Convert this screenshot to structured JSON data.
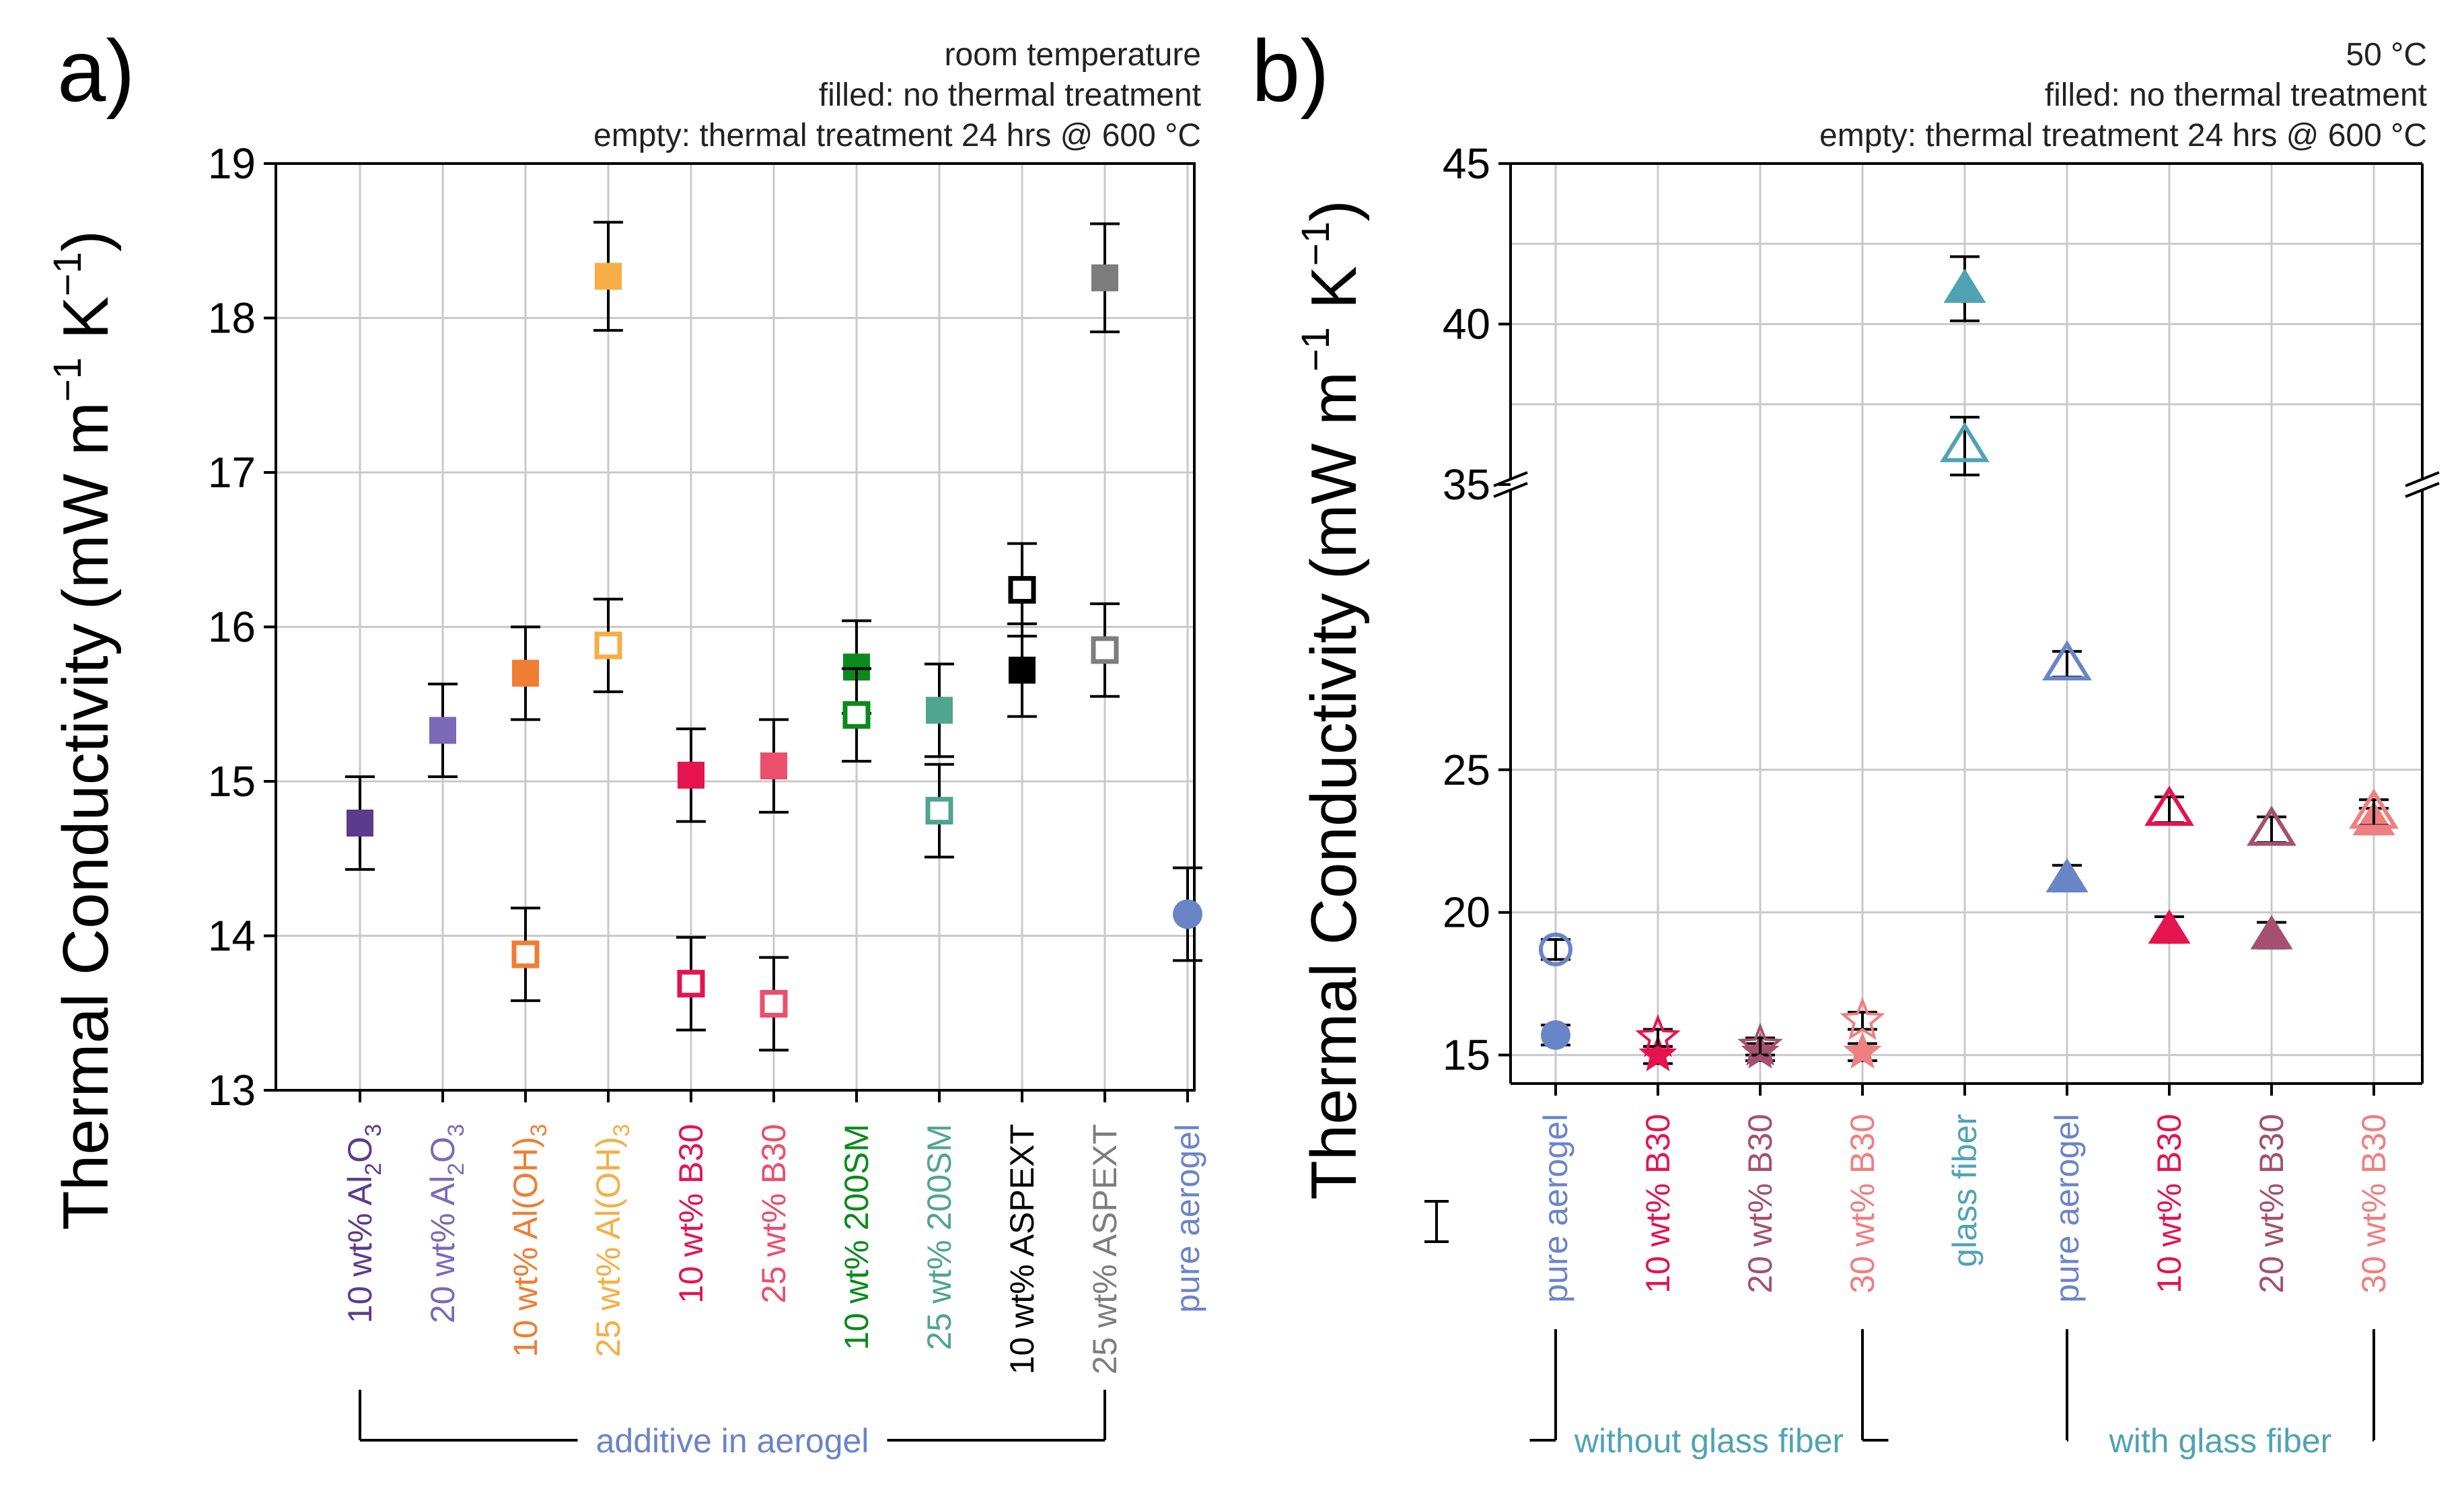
{
  "chart_data": [
    {
      "panel": "a)",
      "type": "scatter",
      "ylabel": "Thermal Conductivity",
      "yunit": {
        "pre": "(mW m",
        "sup1": "−1",
        "mid": " K",
        "sup2": "−1",
        "post": ")"
      },
      "ylim": [
        13,
        19
      ],
      "yticks": [
        "13",
        "14",
        "15",
        "16",
        "17",
        "18",
        "19"
      ],
      "annotations": [
        "room temperature",
        "filled: no thermal treatment",
        "empty: thermal treatment 24 hrs @ 600 °C"
      ],
      "categories": [
        {
          "label": "10 wt% Al",
          "sub": "2",
          "tail": "O",
          "sub2": "3",
          "color": "#5c3a8c"
        },
        {
          "label": "20 wt% Al",
          "sub": "2",
          "tail": "O",
          "sub2": "3",
          "color": "#7a6ab8"
        },
        {
          "label": "10 wt% Al(OH)",
          "sub": "3",
          "tail": "",
          "sub2": "",
          "color": "#ef7d32"
        },
        {
          "label": "25 wt% Al(OH)",
          "sub": "3",
          "tail": "",
          "sub2": "",
          "color": "#f6ae45"
        },
        {
          "label": "10 wt% B30",
          "sub": "",
          "tail": "",
          "sub2": "",
          "color": "#e5134f"
        },
        {
          "label": "25 wt% B30",
          "sub": "",
          "tail": "",
          "sub2": "",
          "color": "#ea4f6c"
        },
        {
          "label": "10 wt% 200SM",
          "sub": "",
          "tail": "",
          "sub2": "",
          "color": "#0a8a1b"
        },
        {
          "label": "25 wt% 200SM",
          "sub": "",
          "tail": "",
          "sub2": "",
          "color": "#4fa58e"
        },
        {
          "label": "10 wt% ASPEXT",
          "sub": "",
          "tail": "",
          "sub2": "",
          "color": "#000000"
        },
        {
          "label": "25 wt% ASPEXT",
          "sub": "",
          "tail": "",
          "sub2": "",
          "color": "#7d7d7d"
        },
        {
          "label": "pure aerogel",
          "sub": "",
          "tail": "",
          "sub2": "",
          "color": "#6a84c8"
        }
      ],
      "series": [
        {
          "name": "filled: no thermal treatment",
          "marker": "square-filled",
          "points": [
            {
              "cat": 0,
              "y": 14.73,
              "err": 0.3
            },
            {
              "cat": 1,
              "y": 15.33,
              "err": 0.3
            },
            {
              "cat": 2,
              "y": 15.7,
              "err": 0.3
            },
            {
              "cat": 3,
              "y": 18.27,
              "err": 0.35
            },
            {
              "cat": 4,
              "y": 15.04,
              "err": 0.3
            },
            {
              "cat": 5,
              "y": 15.1,
              "err": 0.3
            },
            {
              "cat": 6,
              "y": 15.74,
              "err": 0.3
            },
            {
              "cat": 7,
              "y": 15.46,
              "err": 0.3
            },
            {
              "cat": 8,
              "y": 15.72,
              "err": 0.3
            },
            {
              "cat": 9,
              "y": 18.26,
              "err": 0.35
            }
          ]
        },
        {
          "name": "empty: thermal treatment 24 hrs @ 600 °C",
          "marker": "square-open",
          "points": [
            {
              "cat": 2,
              "y": 13.88,
              "err": 0.3
            },
            {
              "cat": 3,
              "y": 15.88,
              "err": 0.3
            },
            {
              "cat": 4,
              "y": 13.69,
              "err": 0.3
            },
            {
              "cat": 5,
              "y": 13.56,
              "err": 0.3
            },
            {
              "cat": 6,
              "y": 15.43,
              "err": 0.3
            },
            {
              "cat": 7,
              "y": 14.81,
              "err": 0.3
            },
            {
              "cat": 8,
              "y": 16.24,
              "err": 0.3
            },
            {
              "cat": 9,
              "y": 15.85,
              "err": 0.3
            }
          ]
        },
        {
          "name": "pure aerogel",
          "marker": "circle-filled",
          "points": [
            {
              "cat": 10,
              "y": 14.14,
              "err": 0.3
            }
          ]
        }
      ],
      "group_bracket": {
        "label": "additive in  aerogel",
        "from": 0,
        "to": 9,
        "color": "#6a84c8"
      }
    },
    {
      "panel": "b)",
      "type": "scatter",
      "ylabel": "Thermal Conductivity",
      "yunit": {
        "pre": "(mW m",
        "sup1": "−1",
        "mid": " K",
        "sup2": "−1",
        "post": ")"
      },
      "ylim_lower": [
        14,
        35
      ],
      "ylim_upper": [
        35,
        45
      ],
      "axis_break": 35,
      "yticks_lower": [
        "15",
        "20",
        "25"
      ],
      "yticks_upper": [
        "35",
        "40",
        "45"
      ],
      "annotations": [
        "50 °C",
        "filled: no thermal treatment",
        "empty: thermal treatment 24 hrs @ 600 °C"
      ],
      "categories": [
        {
          "label": "pure aerogel",
          "color": "#6a84c8"
        },
        {
          "label": "10 wt% B30",
          "color": "#e5134f"
        },
        {
          "label": "20 wt% B30",
          "color": "#a4506e"
        },
        {
          "label": "30 wt% B30",
          "color": "#ef7f80"
        },
        {
          "label": "glass fiber",
          "color": "#4fa3b5"
        },
        {
          "label": "pure aerogel",
          "color": "#6a84c8"
        },
        {
          "label": "10 wt% B30",
          "color": "#e5134f"
        },
        {
          "label": "20 wt% B30",
          "color": "#a4506e"
        },
        {
          "label": "30 wt% B30",
          "color": "#ef7f80"
        }
      ],
      "series": [
        {
          "name": "filled: no thermal treatment",
          "markers": [
            "circle",
            "star",
            "star",
            "star",
            "triangle",
            "triangle",
            "triangle",
            "triangle",
            "triangle"
          ],
          "points": [
            {
              "cat": 0,
              "y": 15.7,
              "err": 0.35
            },
            {
              "cat": 1,
              "y": 15.0,
              "err": 0.3
            },
            {
              "cat": 2,
              "y": 15.1,
              "err": 0.3
            },
            {
              "cat": 3,
              "y": 15.1,
              "err": 0.3
            },
            {
              "cat": 4,
              "y": 41.1,
              "err": 1.0
            },
            {
              "cat": 5,
              "y": 21.2,
              "err": 0.45
            },
            {
              "cat": 6,
              "y": 19.4,
              "err": 0.45
            },
            {
              "cat": 7,
              "y": 19.2,
              "err": 0.45
            },
            {
              "cat": 8,
              "y": 23.2,
              "err": 0.45
            }
          ]
        },
        {
          "name": "empty: thermal treatment 24 hrs @ 600 °C",
          "markers": [
            "circle",
            "star",
            "star",
            "star",
            "triangle",
            "triangle",
            "triangle",
            "triangle",
            "triangle"
          ],
          "points": [
            {
              "cat": 0,
              "y": 18.7,
              "err": 0.35
            },
            {
              "cat": 1,
              "y": 15.6,
              "err": 0.3
            },
            {
              "cat": 2,
              "y": 15.3,
              "err": 0.3
            },
            {
              "cat": 3,
              "y": 16.2,
              "err": 0.3
            },
            {
              "cat": 4,
              "y": 36.2,
              "err": 0.9
            },
            {
              "cat": 5,
              "y": 28.7,
              "err": 0.45
            },
            {
              "cat": 6,
              "y": 23.6,
              "err": 0.45
            },
            {
              "cat": 7,
              "y": 22.9,
              "err": 0.45
            },
            {
              "cat": 8,
              "y": 23.5,
              "err": 0.45
            }
          ]
        }
      ],
      "group_brackets": [
        {
          "label": "without glass fiber",
          "from": 0,
          "to": 3,
          "color": "#4fa3b5"
        },
        {
          "label": "with glass fiber",
          "from": 5,
          "to": 8,
          "color": "#4fa3b5"
        }
      ]
    }
  ]
}
